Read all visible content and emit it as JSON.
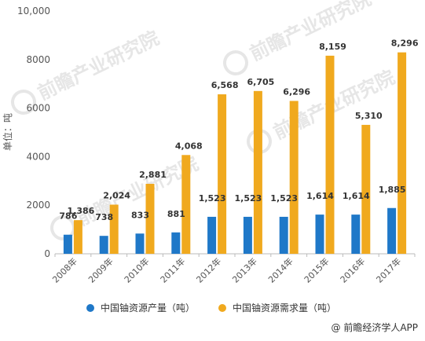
{
  "chart_data": {
    "type": "bar",
    "title": "",
    "xlabel": "",
    "ylabel": "单位：吨",
    "ylim": [
      0,
      10000
    ],
    "yticks": [
      "0",
      "2000",
      "4000",
      "6000",
      "8000",
      "10,000"
    ],
    "yticks_values": [
      0,
      2000,
      4000,
      6000,
      8000,
      10000
    ],
    "categories": [
      "2008年",
      "2009年",
      "2010年",
      "2011年",
      "2012年",
      "2013年",
      "2014年",
      "2015年",
      "2016年",
      "2017年"
    ],
    "series": [
      {
        "name": "中国铀资源产量（吨）",
        "color": "#1f78c8",
        "values": [
          786,
          738,
          833,
          881,
          1523,
          1523,
          1523,
          1614,
          1614,
          1885
        ],
        "labels": [
          "786",
          "738",
          "833",
          "881",
          "1,523",
          "1,523",
          "1,523",
          "1,614",
          "1,614",
          "1,885"
        ]
      },
      {
        "name": "中国铀资源需求量（吨）",
        "color": "#f0a91e",
        "values": [
          1386,
          2024,
          2881,
          4068,
          6568,
          6705,
          6296,
          8159,
          5310,
          8296
        ],
        "labels": [
          "1,386",
          "2,024",
          "2,881",
          "4,068",
          "6,568",
          "6,705",
          "6,296",
          "8,159",
          "5,310",
          "8,296"
        ]
      }
    ],
    "legend_position": "bottom",
    "grid": false
  },
  "watermark": {
    "brand": "前瞻产业研究院"
  },
  "credit": "@ 前瞻经济学人APP"
}
